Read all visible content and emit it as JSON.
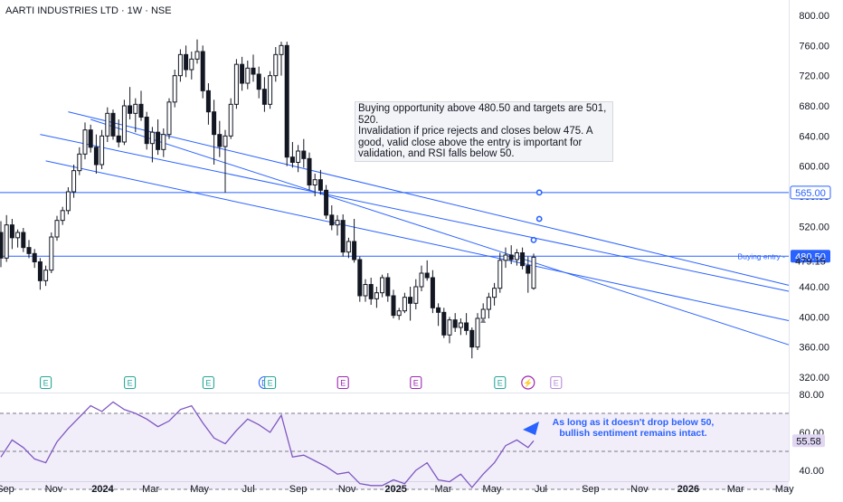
{
  "header": {
    "title": "AARTI INDUSTRIES LTD · 1W · NSE"
  },
  "annotation": {
    "lines": [
      "Buying opportunity above 480.50 and targets are 501,",
      "520.",
      "Invalidation if price rejects and closes below 475. A",
      "good, valid close above the entry is important for",
      "validation, and RSI falls below 50."
    ]
  },
  "rsi_note": {
    "lines": [
      "As long as it doesn't drop below 50,",
      "bullish sentiment remains intact."
    ]
  },
  "entry_label": "Buying entry",
  "chart_data": [
    {
      "type": "candlestick",
      "symbol": "AARTI INDUSTRIES LTD",
      "interval": "1W",
      "exchange": "NSE",
      "ylim": [
        300,
        820
      ],
      "y_ticks": [
        "800.00",
        "760.00",
        "720.00",
        "680.00",
        "640.00",
        "600.00",
        "560.00",
        "520.00",
        "480.00",
        "440.00",
        "400.00",
        "360.00",
        "320.00"
      ],
      "x_ticks": [
        "Sep",
        "Nov",
        "2024",
        "Mar",
        "May",
        "Jul",
        "Sep",
        "Nov",
        "2025",
        "Mar",
        "May",
        "Jul",
        "Sep",
        "Nov",
        "2026",
        "Mar",
        "May"
      ],
      "x_ticks_bold": [
        "2024",
        "2025",
        "2026"
      ],
      "price_labels": [
        {
          "value": 565.0,
          "text": "565.00",
          "style": "outline"
        },
        {
          "value": 480.5,
          "text": "480.50",
          "style": "filled"
        },
        {
          "value": 479.15,
          "text": "479.15",
          "style": "plain"
        }
      ],
      "horizontal_lines": [
        {
          "value": 565.0
        },
        {
          "value": 480.5,
          "label": "Buying entry"
        }
      ],
      "channel_lines": [
        {
          "from": [
            "2023-10-15",
            642
          ],
          "to": [
            "2026-06-15",
            434
          ]
        },
        {
          "from": [
            "2023-10-22",
            607
          ],
          "to": [
            "2026-06-15",
            395
          ]
        },
        {
          "from": [
            "2023-11-19",
            672
          ],
          "to": [
            "2026-06-15",
            442
          ]
        },
        {
          "from": [
            "2023-12-17",
            662
          ],
          "to": [
            "2026-06-15",
            363
          ]
        }
      ],
      "markers": [
        {
          "date": "2025-06-29",
          "value": 565
        },
        {
          "date": "2025-06-29",
          "value": 530
        },
        {
          "date": "2025-06-22",
          "value": 502
        }
      ],
      "events": [
        {
          "date": "2023-10-22",
          "label": "E",
          "color": "#26a69a"
        },
        {
          "date": "2024-02-04",
          "label": "E",
          "color": "#26a69a"
        },
        {
          "date": "2024-05-12",
          "label": "E",
          "color": "#26a69a"
        },
        {
          "date": "2024-07-21",
          "label": "D",
          "color": "#2962ff"
        },
        {
          "date": "2024-07-28",
          "label": "E",
          "color": "#26a69a"
        },
        {
          "date": "2024-10-27",
          "label": "E",
          "color": "#9c27b0"
        },
        {
          "date": "2025-01-26",
          "label": "E",
          "color": "#9c27b0"
        },
        {
          "date": "2025-05-11",
          "label": "E",
          "color": "#26a69a"
        },
        {
          "date": "2025-06-15",
          "label": "⚡",
          "color": "#9c27b0"
        },
        {
          "date": "2025-07-20",
          "label": "E",
          "color": "#b48ad6"
        }
      ],
      "candles": [
        {
          "d": "2023-08-27",
          "o": 512,
          "h": 527,
          "l": 466,
          "c": 478
        },
        {
          "d": "2023-09-03",
          "o": 478,
          "h": 535,
          "l": 473,
          "c": 522
        },
        {
          "d": "2023-09-10",
          "o": 522,
          "h": 530,
          "l": 490,
          "c": 505
        },
        {
          "d": "2023-09-17",
          "o": 505,
          "h": 516,
          "l": 492,
          "c": 512
        },
        {
          "d": "2023-09-24",
          "o": 512,
          "h": 518,
          "l": 486,
          "c": 492
        },
        {
          "d": "2023-10-01",
          "o": 492,
          "h": 502,
          "l": 478,
          "c": 484
        },
        {
          "d": "2023-10-08",
          "o": 484,
          "h": 490,
          "l": 465,
          "c": 473
        },
        {
          "d": "2023-10-15",
          "o": 473,
          "h": 478,
          "l": 436,
          "c": 448
        },
        {
          "d": "2023-10-22",
          "o": 448,
          "h": 468,
          "l": 441,
          "c": 462
        },
        {
          "d": "2023-10-29",
          "o": 462,
          "h": 512,
          "l": 458,
          "c": 506
        },
        {
          "d": "2023-11-05",
          "o": 506,
          "h": 534,
          "l": 501,
          "c": 528
        },
        {
          "d": "2023-11-12",
          "o": 528,
          "h": 546,
          "l": 522,
          "c": 541
        },
        {
          "d": "2023-11-19",
          "o": 541,
          "h": 572,
          "l": 536,
          "c": 566
        },
        {
          "d": "2023-11-26",
          "o": 566,
          "h": 602,
          "l": 558,
          "c": 594
        },
        {
          "d": "2023-12-03",
          "o": 594,
          "h": 625,
          "l": 588,
          "c": 616
        },
        {
          "d": "2023-12-10",
          "o": 616,
          "h": 658,
          "l": 609,
          "c": 648
        },
        {
          "d": "2023-12-17",
          "o": 648,
          "h": 655,
          "l": 618,
          "c": 625
        },
        {
          "d": "2023-12-24",
          "o": 625,
          "h": 642,
          "l": 590,
          "c": 602
        },
        {
          "d": "2023-12-31",
          "o": 602,
          "h": 648,
          "l": 596,
          "c": 640
        },
        {
          "d": "2024-01-07",
          "o": 640,
          "h": 678,
          "l": 632,
          "c": 670
        },
        {
          "d": "2024-01-14",
          "o": 670,
          "h": 675,
          "l": 635,
          "c": 640
        },
        {
          "d": "2024-01-21",
          "o": 640,
          "h": 662,
          "l": 625,
          "c": 632
        },
        {
          "d": "2024-01-28",
          "o": 632,
          "h": 688,
          "l": 628,
          "c": 680
        },
        {
          "d": "2024-02-04",
          "o": 680,
          "h": 705,
          "l": 662,
          "c": 670
        },
        {
          "d": "2024-02-11",
          "o": 670,
          "h": 690,
          "l": 645,
          "c": 682
        },
        {
          "d": "2024-02-18",
          "o": 682,
          "h": 700,
          "l": 660,
          "c": 665
        },
        {
          "d": "2024-02-25",
          "o": 665,
          "h": 672,
          "l": 622,
          "c": 630
        },
        {
          "d": "2024-03-03",
          "o": 630,
          "h": 652,
          "l": 605,
          "c": 645
        },
        {
          "d": "2024-03-10",
          "o": 645,
          "h": 662,
          "l": 615,
          "c": 622
        },
        {
          "d": "2024-03-17",
          "o": 622,
          "h": 650,
          "l": 612,
          "c": 642
        },
        {
          "d": "2024-03-24",
          "o": 642,
          "h": 690,
          "l": 636,
          "c": 685
        },
        {
          "d": "2024-03-31",
          "o": 685,
          "h": 728,
          "l": 678,
          "c": 720
        },
        {
          "d": "2024-04-07",
          "o": 720,
          "h": 755,
          "l": 712,
          "c": 748
        },
        {
          "d": "2024-04-14",
          "o": 748,
          "h": 760,
          "l": 718,
          "c": 728
        },
        {
          "d": "2024-04-21",
          "o": 728,
          "h": 752,
          "l": 715,
          "c": 742
        },
        {
          "d": "2024-04-28",
          "o": 742,
          "h": 768,
          "l": 736,
          "c": 752
        },
        {
          "d": "2024-05-05",
          "o": 752,
          "h": 760,
          "l": 690,
          "c": 700
        },
        {
          "d": "2024-05-12",
          "o": 700,
          "h": 710,
          "l": 655,
          "c": 672
        },
        {
          "d": "2024-05-19",
          "o": 672,
          "h": 688,
          "l": 602,
          "c": 642
        },
        {
          "d": "2024-05-26",
          "o": 642,
          "h": 660,
          "l": 612,
          "c": 626
        },
        {
          "d": "2024-06-02",
          "o": 626,
          "h": 648,
          "l": 565,
          "c": 640
        },
        {
          "d": "2024-06-09",
          "o": 640,
          "h": 690,
          "l": 636,
          "c": 682
        },
        {
          "d": "2024-06-16",
          "o": 682,
          "h": 742,
          "l": 676,
          "c": 735
        },
        {
          "d": "2024-06-23",
          "o": 735,
          "h": 745,
          "l": 700,
          "c": 710
        },
        {
          "d": "2024-06-30",
          "o": 710,
          "h": 740,
          "l": 702,
          "c": 730
        },
        {
          "d": "2024-07-07",
          "o": 730,
          "h": 748,
          "l": 712,
          "c": 722
        },
        {
          "d": "2024-07-14",
          "o": 722,
          "h": 732,
          "l": 690,
          "c": 702
        },
        {
          "d": "2024-07-21",
          "o": 702,
          "h": 718,
          "l": 672,
          "c": 682
        },
        {
          "d": "2024-07-28",
          "o": 682,
          "h": 726,
          "l": 676,
          "c": 720
        },
        {
          "d": "2024-08-04",
          "o": 720,
          "h": 758,
          "l": 712,
          "c": 748
        },
        {
          "d": "2024-08-11",
          "o": 748,
          "h": 765,
          "l": 720,
          "c": 760
        },
        {
          "d": "2024-08-18",
          "o": 760,
          "h": 765,
          "l": 600,
          "c": 612
        },
        {
          "d": "2024-08-25",
          "o": 612,
          "h": 632,
          "l": 598,
          "c": 605
        },
        {
          "d": "2024-09-01",
          "o": 605,
          "h": 628,
          "l": 592,
          "c": 620
        },
        {
          "d": "2024-09-08",
          "o": 620,
          "h": 636,
          "l": 598,
          "c": 610
        },
        {
          "d": "2024-09-15",
          "o": 610,
          "h": 618,
          "l": 568,
          "c": 575
        },
        {
          "d": "2024-09-22",
          "o": 575,
          "h": 590,
          "l": 560,
          "c": 582
        },
        {
          "d": "2024-09-29",
          "o": 582,
          "h": 595,
          "l": 562,
          "c": 568
        },
        {
          "d": "2024-10-06",
          "o": 568,
          "h": 575,
          "l": 530,
          "c": 535
        },
        {
          "d": "2024-10-13",
          "o": 535,
          "h": 548,
          "l": 515,
          "c": 522
        },
        {
          "d": "2024-10-20",
          "o": 522,
          "h": 535,
          "l": 508,
          "c": 528
        },
        {
          "d": "2024-10-27",
          "o": 528,
          "h": 536,
          "l": 480,
          "c": 486
        },
        {
          "d": "2024-11-03",
          "o": 486,
          "h": 505,
          "l": 478,
          "c": 500
        },
        {
          "d": "2024-11-10",
          "o": 500,
          "h": 530,
          "l": 472,
          "c": 476
        },
        {
          "d": "2024-11-17",
          "o": 476,
          "h": 480,
          "l": 420,
          "c": 428
        },
        {
          "d": "2024-11-24",
          "o": 428,
          "h": 450,
          "l": 420,
          "c": 443
        },
        {
          "d": "2024-12-01",
          "o": 443,
          "h": 452,
          "l": 416,
          "c": 424
        },
        {
          "d": "2024-12-08",
          "o": 424,
          "h": 440,
          "l": 412,
          "c": 432
        },
        {
          "d": "2024-12-15",
          "o": 432,
          "h": 456,
          "l": 426,
          "c": 452
        },
        {
          "d": "2024-12-22",
          "o": 452,
          "h": 458,
          "l": 420,
          "c": 428
        },
        {
          "d": "2024-12-29",
          "o": 428,
          "h": 436,
          "l": 398,
          "c": 402
        },
        {
          "d": "2025-01-05",
          "o": 402,
          "h": 412,
          "l": 396,
          "c": 408
        },
        {
          "d": "2025-01-12",
          "o": 408,
          "h": 432,
          "l": 405,
          "c": 426
        },
        {
          "d": "2025-01-19",
          "o": 426,
          "h": 440,
          "l": 395,
          "c": 418
        },
        {
          "d": "2025-01-26",
          "o": 418,
          "h": 450,
          "l": 410,
          "c": 440
        },
        {
          "d": "2025-02-02",
          "o": 440,
          "h": 468,
          "l": 434,
          "c": 458
        },
        {
          "d": "2025-02-09",
          "o": 458,
          "h": 475,
          "l": 448,
          "c": 452
        },
        {
          "d": "2025-02-16",
          "o": 452,
          "h": 462,
          "l": 405,
          "c": 412
        },
        {
          "d": "2025-02-23",
          "o": 412,
          "h": 418,
          "l": 388,
          "c": 406
        },
        {
          "d": "2025-03-02",
          "o": 406,
          "h": 412,
          "l": 372,
          "c": 376
        },
        {
          "d": "2025-03-09",
          "o": 376,
          "h": 400,
          "l": 365,
          "c": 396
        },
        {
          "d": "2025-03-16",
          "o": 396,
          "h": 405,
          "l": 380,
          "c": 386
        },
        {
          "d": "2025-03-23",
          "o": 386,
          "h": 398,
          "l": 376,
          "c": 392
        },
        {
          "d": "2025-03-30",
          "o": 392,
          "h": 405,
          "l": 376,
          "c": 382
        },
        {
          "d": "2025-04-06",
          "o": 382,
          "h": 386,
          "l": 345,
          "c": 360
        },
        {
          "d": "2025-04-13",
          "o": 360,
          "h": 405,
          "l": 356,
          "c": 398
        },
        {
          "d": "2025-04-20",
          "o": 398,
          "h": 418,
          "l": 392,
          "c": 410
        },
        {
          "d": "2025-04-27",
          "o": 410,
          "h": 432,
          "l": 398,
          "c": 426
        },
        {
          "d": "2025-05-04",
          "o": 426,
          "h": 445,
          "l": 415,
          "c": 438
        },
        {
          "d": "2025-05-11",
          "o": 438,
          "h": 485,
          "l": 432,
          "c": 475
        },
        {
          "d": "2025-05-18",
          "o": 475,
          "h": 492,
          "l": 465,
          "c": 482
        },
        {
          "d": "2025-05-25",
          "o": 482,
          "h": 495,
          "l": 470,
          "c": 476
        },
        {
          "d": "2025-06-01",
          "o": 476,
          "h": 490,
          "l": 468,
          "c": 485
        },
        {
          "d": "2025-06-08",
          "o": 485,
          "h": 492,
          "l": 463,
          "c": 468
        },
        {
          "d": "2025-06-15",
          "o": 468,
          "h": 480,
          "l": 432,
          "c": 458
        },
        {
          "d": "2025-06-22",
          "o": 438,
          "h": 484,
          "l": 436,
          "c": 479.15
        }
      ]
    },
    {
      "type": "line",
      "name": "RSI",
      "ylim": [
        25,
        80
      ],
      "y_ticks": [
        "80.00",
        "60.00",
        "40.00"
      ],
      "band": [
        30,
        70
      ],
      "midline": 50,
      "last_value_label": "55.58",
      "x": [
        "2023-08-27",
        "2023-09-10",
        "2023-09-24",
        "2023-10-08",
        "2023-10-22",
        "2023-11-05",
        "2023-11-19",
        "2023-12-03",
        "2023-12-17",
        "2023-12-31",
        "2024-01-14",
        "2024-01-28",
        "2024-02-11",
        "2024-02-25",
        "2024-03-10",
        "2024-03-24",
        "2024-04-07",
        "2024-04-21",
        "2024-05-05",
        "2024-05-19",
        "2024-06-02",
        "2024-06-16",
        "2024-06-30",
        "2024-07-14",
        "2024-07-28",
        "2024-08-11",
        "2024-08-25",
        "2024-09-08",
        "2024-09-22",
        "2024-10-06",
        "2024-10-20",
        "2024-11-03",
        "2024-11-17",
        "2024-12-01",
        "2024-12-15",
        "2024-12-29",
        "2025-01-12",
        "2025-01-26",
        "2025-02-09",
        "2025-02-23",
        "2025-03-09",
        "2025-03-23",
        "2025-04-06",
        "2025-04-20",
        "2025-05-04",
        "2025-05-18",
        "2025-06-01",
        "2025-06-15",
        "2025-06-22"
      ],
      "values": [
        47,
        56,
        52,
        46,
        44,
        55,
        62,
        68,
        74,
        71,
        76,
        72,
        70,
        67,
        63,
        66,
        72,
        74,
        65,
        57,
        54,
        61,
        67,
        64,
        60,
        69,
        47,
        48,
        45,
        42,
        38,
        39,
        33,
        32,
        32,
        35,
        33,
        40,
        44,
        35,
        34,
        38,
        31,
        38,
        44,
        53,
        56,
        52,
        55.58
      ]
    }
  ]
}
